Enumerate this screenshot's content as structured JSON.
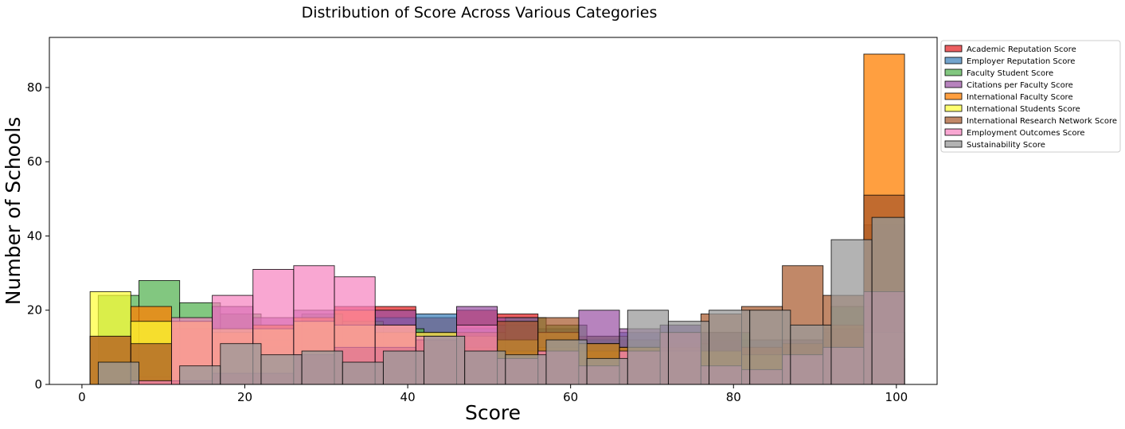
{
  "chart_data": {
    "type": "bar",
    "title": "Distribution of Score Across Various Categories",
    "xlabel": "Score",
    "ylabel": "Number of Schools",
    "xlim": [
      -4,
      105
    ],
    "ylim": [
      0,
      93.5
    ],
    "xticks": [
      0,
      20,
      40,
      60,
      80,
      100
    ],
    "yticks": [
      0,
      20,
      40,
      60,
      80
    ],
    "grid": false,
    "legend_position": "outside-right-top",
    "series": [
      {
        "name": "Academic Reputation Score",
        "color": "#e41a1c",
        "alpha": 0.7,
        "bins": [
          [
            1,
            6,
            0
          ],
          [
            6,
            11,
            0
          ],
          [
            11,
            16,
            1
          ],
          [
            16,
            21,
            9
          ],
          [
            21,
            26,
            12
          ],
          [
            26,
            31,
            15
          ],
          [
            31,
            36,
            21
          ],
          [
            36,
            41,
            21
          ],
          [
            41,
            46,
            18
          ],
          [
            46,
            51,
            20
          ],
          [
            51,
            56,
            19
          ],
          [
            56,
            61,
            13
          ],
          [
            61,
            66,
            13
          ],
          [
            66,
            71,
            12
          ],
          [
            71,
            76,
            11
          ],
          [
            76,
            81,
            12
          ],
          [
            81,
            86,
            5
          ],
          [
            86,
            91,
            8
          ],
          [
            91,
            96,
            12
          ],
          [
            96,
            101,
            7
          ]
        ]
      },
      {
        "name": "Employer Reputation Score",
        "color": "#377eb8",
        "alpha": 0.7,
        "bins": [
          [
            1,
            6,
            0
          ],
          [
            6,
            11,
            1
          ],
          [
            11,
            16,
            3
          ],
          [
            16,
            21,
            6
          ],
          [
            21,
            26,
            10
          ],
          [
            26,
            31,
            15
          ],
          [
            31,
            36,
            16
          ],
          [
            36,
            41,
            18
          ],
          [
            41,
            46,
            19
          ],
          [
            46,
            51,
            15
          ],
          [
            51,
            56,
            16
          ],
          [
            56,
            61,
            15
          ],
          [
            61,
            66,
            12
          ],
          [
            66,
            71,
            14
          ],
          [
            71,
            76,
            16
          ],
          [
            76,
            81,
            14
          ],
          [
            81,
            86,
            12
          ],
          [
            86,
            91,
            10
          ],
          [
            91,
            96,
            14
          ],
          [
            96,
            101,
            43
          ]
        ]
      },
      {
        "name": "Faculty Student Score",
        "color": "#4daf4a",
        "alpha": 0.7,
        "bins": [
          [
            2,
            7,
            24
          ],
          [
            7,
            12,
            28
          ],
          [
            12,
            17,
            22
          ],
          [
            17,
            22,
            19
          ],
          [
            22,
            27,
            16
          ],
          [
            27,
            32,
            19
          ],
          [
            32,
            37,
            17
          ],
          [
            37,
            42,
            15
          ],
          [
            42,
            47,
            13
          ],
          [
            47,
            52,
            14
          ],
          [
            52,
            57,
            18
          ],
          [
            57,
            62,
            16
          ],
          [
            62,
            67,
            13
          ],
          [
            67,
            72,
            12
          ],
          [
            72,
            77,
            11
          ],
          [
            77,
            82,
            14
          ],
          [
            82,
            87,
            9
          ],
          [
            87,
            92,
            12
          ],
          [
            92,
            97,
            21
          ],
          [
            97,
            101,
            45
          ]
        ]
      },
      {
        "name": "Citations per Faculty Score",
        "color": "#984ea3",
        "alpha": 0.7,
        "bins": [
          [
            1,
            6,
            0
          ],
          [
            6,
            11,
            2
          ],
          [
            11,
            16,
            15
          ],
          [
            16,
            21,
            21
          ],
          [
            21,
            26,
            18
          ],
          [
            26,
            31,
            20
          ],
          [
            31,
            36,
            16
          ],
          [
            36,
            41,
            20
          ],
          [
            41,
            46,
            14
          ],
          [
            46,
            51,
            21
          ],
          [
            51,
            56,
            18
          ],
          [
            56,
            61,
            14
          ],
          [
            61,
            66,
            20
          ],
          [
            66,
            71,
            15
          ],
          [
            71,
            76,
            16
          ],
          [
            76,
            81,
            14
          ],
          [
            81,
            86,
            10
          ],
          [
            86,
            91,
            12
          ],
          [
            91,
            96,
            15
          ],
          [
            96,
            101,
            24
          ]
        ]
      },
      {
        "name": "International Faculty Score",
        "color": "#ff7f00",
        "alpha": 0.75,
        "bins": [
          [
            1,
            6,
            13
          ],
          [
            6,
            11,
            21
          ],
          [
            11,
            16,
            17
          ],
          [
            16,
            21,
            14
          ],
          [
            21,
            26,
            16
          ],
          [
            26,
            31,
            18
          ],
          [
            31,
            36,
            20
          ],
          [
            36,
            41,
            14
          ],
          [
            41,
            46,
            12
          ],
          [
            46,
            51,
            10
          ],
          [
            51,
            56,
            9
          ],
          [
            56,
            61,
            10
          ],
          [
            61,
            66,
            9
          ],
          [
            66,
            71,
            10
          ],
          [
            71,
            76,
            10
          ],
          [
            76,
            81,
            9
          ],
          [
            81,
            86,
            10
          ],
          [
            86,
            91,
            11
          ],
          [
            91,
            96,
            16
          ],
          [
            96,
            101,
            89
          ]
        ]
      },
      {
        "name": "International Students Score",
        "color": "#ffff33",
        "alpha": 0.7,
        "bins": [
          [
            1,
            6,
            25
          ],
          [
            6,
            11,
            17
          ],
          [
            11,
            16,
            17
          ],
          [
            16,
            21,
            15
          ],
          [
            21,
            26,
            15
          ],
          [
            26,
            31,
            17
          ],
          [
            31,
            36,
            16
          ],
          [
            36,
            41,
            16
          ],
          [
            41,
            46,
            14
          ],
          [
            46,
            51,
            13
          ],
          [
            51,
            56,
            12
          ],
          [
            56,
            61,
            14
          ],
          [
            61,
            66,
            11
          ],
          [
            66,
            71,
            10
          ],
          [
            71,
            76,
            9
          ],
          [
            76,
            81,
            9
          ],
          [
            81,
            86,
            8
          ],
          [
            86,
            91,
            8
          ],
          [
            91,
            96,
            10
          ],
          [
            96,
            101,
            14
          ]
        ]
      },
      {
        "name": "International Research Network Score",
        "color": "#a65628",
        "alpha": 0.7,
        "bins": [
          [
            1,
            6,
            13
          ],
          [
            6,
            11,
            11
          ],
          [
            11,
            16,
            1
          ],
          [
            16,
            21,
            3
          ],
          [
            21,
            26,
            3
          ],
          [
            26,
            31,
            8
          ],
          [
            31,
            36,
            10
          ],
          [
            36,
            41,
            10
          ],
          [
            41,
            46,
            12
          ],
          [
            46,
            51,
            14
          ],
          [
            51,
            56,
            17
          ],
          [
            56,
            61,
            18
          ],
          [
            61,
            66,
            11
          ],
          [
            66,
            71,
            10
          ],
          [
            71,
            76,
            14
          ],
          [
            76,
            81,
            19
          ],
          [
            81,
            86,
            21
          ],
          [
            86,
            91,
            32
          ],
          [
            91,
            96,
            24
          ],
          [
            96,
            101,
            51
          ]
        ]
      },
      {
        "name": "Employment Outcomes Score",
        "color": "#f781bf",
        "alpha": 0.7,
        "bins": [
          [
            1,
            6,
            0
          ],
          [
            6,
            11,
            1
          ],
          [
            11,
            16,
            18
          ],
          [
            16,
            21,
            24
          ],
          [
            21,
            26,
            31
          ],
          [
            26,
            31,
            32
          ],
          [
            31,
            36,
            29
          ],
          [
            36,
            41,
            16
          ],
          [
            41,
            46,
            13
          ],
          [
            46,
            51,
            16
          ],
          [
            51,
            56,
            7
          ],
          [
            56,
            61,
            9
          ],
          [
            61,
            66,
            5
          ],
          [
            66,
            71,
            9
          ],
          [
            71,
            76,
            14
          ],
          [
            76,
            81,
            5
          ],
          [
            81,
            86,
            4
          ],
          [
            86,
            91,
            8
          ],
          [
            91,
            96,
            10
          ],
          [
            96,
            101,
            25
          ]
        ]
      },
      {
        "name": "Sustainability Score",
        "color": "#999999",
        "alpha": 0.75,
        "bins": [
          [
            2,
            7,
            6
          ],
          [
            7,
            12,
            0
          ],
          [
            12,
            17,
            5
          ],
          [
            17,
            22,
            11
          ],
          [
            22,
            27,
            8
          ],
          [
            27,
            32,
            9
          ],
          [
            32,
            37,
            6
          ],
          [
            37,
            42,
            9
          ],
          [
            42,
            47,
            13
          ],
          [
            47,
            52,
            9
          ],
          [
            52,
            57,
            8
          ],
          [
            57,
            62,
            12
          ],
          [
            62,
            67,
            7
          ],
          [
            67,
            72,
            20
          ],
          [
            72,
            77,
            17
          ],
          [
            77,
            82,
            20
          ],
          [
            82,
            87,
            20
          ],
          [
            87,
            92,
            16
          ],
          [
            92,
            97,
            39
          ],
          [
            97,
            101,
            45
          ]
        ]
      }
    ]
  }
}
